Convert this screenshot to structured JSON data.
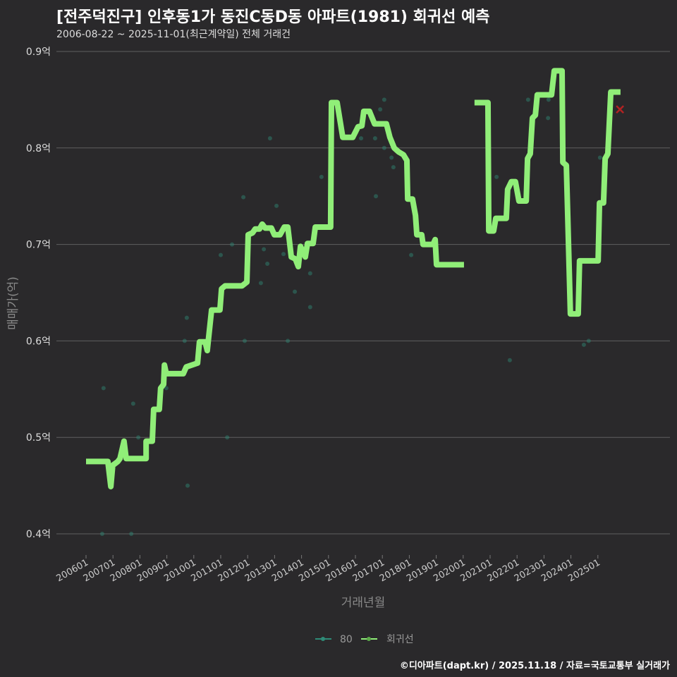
{
  "chart_data": {
    "type": "line",
    "title": "[전주덕진구] 인후동1가 동진C동D동 아파트(1981) 회귀선 예측",
    "subtitle": "2006-08-22 ~ 2025-11-01(최근계약일) 전체 거래건",
    "xlabel": "거래년월",
    "ylabel": "매매가(억)",
    "xlim": [
      2006,
      2026
    ],
    "ylim": [
      0.4,
      0.9
    ],
    "x_tick_labels": [
      "200601",
      "200701",
      "200801",
      "200901",
      "201001",
      "201101",
      "201201",
      "201301",
      "201401",
      "201501",
      "201601",
      "201701",
      "201801",
      "201901",
      "202001",
      "202101",
      "202201",
      "202301",
      "202401",
      "202501"
    ],
    "y_ticks": [
      0.4,
      0.5,
      0.6,
      0.7,
      0.8,
      0.9
    ],
    "y_tick_labels": [
      "0.4억",
      "0.5억",
      "0.6억",
      "0.7억",
      "0.8억",
      "0.9억"
    ],
    "legend": {
      "position": "bottom",
      "entries": [
        "80",
        "회귀선"
      ]
    },
    "colors": {
      "scatter": "#2e8b77",
      "line": "#90ee78",
      "prediction": "#b22222"
    },
    "series": [
      {
        "name": "80",
        "type": "scatter",
        "points": [
          [
            2006.65,
            0.551
          ],
          [
            2006.6,
            0.4
          ],
          [
            2007.68,
            0.4
          ],
          [
            2007.75,
            0.535
          ],
          [
            2007.94,
            0.5
          ],
          [
            2008.98,
            0.551
          ],
          [
            2009.66,
            0.6
          ],
          [
            2009.74,
            0.624
          ],
          [
            2009.77,
            0.45
          ],
          [
            2011.24,
            0.5
          ],
          [
            2011.0,
            0.689
          ],
          [
            2011.42,
            0.7
          ],
          [
            2011.84,
            0.749
          ],
          [
            2011.89,
            0.6
          ],
          [
            2012.49,
            0.66
          ],
          [
            2012.6,
            0.695
          ],
          [
            2012.73,
            0.68
          ],
          [
            2012.83,
            0.81
          ],
          [
            2013.07,
            0.74
          ],
          [
            2013.33,
            0.69
          ],
          [
            2013.49,
            0.6
          ],
          [
            2013.75,
            0.651
          ],
          [
            2014.32,
            0.67
          ],
          [
            2014.32,
            0.635
          ],
          [
            2014.74,
            0.77
          ],
          [
            2016.21,
            0.81
          ],
          [
            2016.73,
            0.81
          ],
          [
            2016.76,
            0.75
          ],
          [
            2016.92,
            0.84
          ],
          [
            2017.07,
            0.85
          ],
          [
            2017.07,
            0.8
          ],
          [
            2017.34,
            0.79
          ],
          [
            2017.41,
            0.78
          ],
          [
            2018.07,
            0.689
          ],
          [
            2021.24,
            0.77
          ],
          [
            2021.73,
            0.58
          ],
          [
            2022.41,
            0.85
          ],
          [
            2023.15,
            0.831
          ],
          [
            2023.17,
            0.85
          ],
          [
            2024.48,
            0.596
          ],
          [
            2024.66,
            0.6
          ],
          [
            2025.08,
            0.79
          ]
        ]
      },
      {
        "name": "회귀선",
        "type": "line",
        "segments": [
          [
            [
              2006.0,
              0.475
            ],
            [
              2006.81,
              0.475
            ],
            [
              2006.92,
              0.449
            ],
            [
              2006.99,
              0.471
            ],
            [
              2007.18,
              0.475
            ],
            [
              2007.26,
              0.478
            ],
            [
              2007.41,
              0.496
            ],
            [
              2007.49,
              0.478
            ],
            [
              2008.23,
              0.478
            ],
            [
              2008.23,
              0.496
            ],
            [
              2008.46,
              0.496
            ],
            [
              2008.51,
              0.529
            ],
            [
              2008.72,
              0.529
            ],
            [
              2008.77,
              0.551
            ],
            [
              2008.88,
              0.555
            ],
            [
              2008.91,
              0.575
            ],
            [
              2008.98,
              0.566
            ],
            [
              2009.61,
              0.566
            ],
            [
              2009.72,
              0.573
            ],
            [
              2010.14,
              0.577
            ],
            [
              2010.21,
              0.599
            ],
            [
              2010.42,
              0.599
            ],
            [
              2010.5,
              0.59
            ],
            [
              2010.66,
              0.632
            ],
            [
              2010.97,
              0.632
            ],
            [
              2011.03,
              0.654
            ],
            [
              2011.16,
              0.657
            ],
            [
              2011.79,
              0.657
            ],
            [
              2011.97,
              0.661
            ],
            [
              2012.02,
              0.71
            ],
            [
              2012.18,
              0.712
            ],
            [
              2012.28,
              0.716
            ],
            [
              2012.44,
              0.716
            ],
            [
              2012.54,
              0.721
            ],
            [
              2012.65,
              0.717
            ],
            [
              2012.88,
              0.717
            ],
            [
              2012.99,
              0.71
            ],
            [
              2013.2,
              0.71
            ],
            [
              2013.36,
              0.718
            ],
            [
              2013.49,
              0.718
            ],
            [
              2013.62,
              0.687
            ],
            [
              2013.77,
              0.685
            ],
            [
              2013.88,
              0.677
            ],
            [
              2013.96,
              0.698
            ],
            [
              2014.14,
              0.687
            ],
            [
              2014.22,
              0.701
            ],
            [
              2014.43,
              0.701
            ],
            [
              2014.51,
              0.718
            ],
            [
              2015.08,
              0.718
            ],
            [
              2015.11,
              0.847
            ],
            [
              2015.32,
              0.847
            ],
            [
              2015.53,
              0.811
            ],
            [
              2015.9,
              0.811
            ],
            [
              2016.1,
              0.822
            ],
            [
              2016.24,
              0.823
            ],
            [
              2016.31,
              0.838
            ],
            [
              2016.52,
              0.838
            ],
            [
              2016.71,
              0.825
            ],
            [
              2017.15,
              0.825
            ],
            [
              2017.28,
              0.811
            ],
            [
              2017.44,
              0.8
            ],
            [
              2017.6,
              0.796
            ],
            [
              2017.78,
              0.793
            ],
            [
              2017.91,
              0.787
            ],
            [
              2017.94,
              0.747
            ],
            [
              2018.12,
              0.747
            ],
            [
              2018.23,
              0.73
            ],
            [
              2018.28,
              0.71
            ],
            [
              2018.46,
              0.71
            ],
            [
              2018.51,
              0.7
            ],
            [
              2018.88,
              0.7
            ],
            [
              2018.96,
              0.705
            ],
            [
              2019.01,
              0.679
            ],
            [
              2020.03,
              0.679
            ]
          ],
          [
            [
              2020.42,
              0.847
            ],
            [
              2020.92,
              0.847
            ],
            [
              2020.95,
              0.714
            ],
            [
              2021.13,
              0.714
            ],
            [
              2021.21,
              0.727
            ],
            [
              2021.6,
              0.727
            ],
            [
              2021.65,
              0.757
            ],
            [
              2021.79,
              0.765
            ],
            [
              2021.94,
              0.765
            ],
            [
              2022.07,
              0.745
            ],
            [
              2022.34,
              0.745
            ],
            [
              2022.39,
              0.789
            ],
            [
              2022.49,
              0.794
            ],
            [
              2022.57,
              0.831
            ],
            [
              2022.68,
              0.834
            ],
            [
              2022.75,
              0.855
            ],
            [
              2023.28,
              0.855
            ],
            [
              2023.38,
              0.88
            ],
            [
              2023.67,
              0.88
            ],
            [
              2023.7,
              0.785
            ],
            [
              2023.83,
              0.782
            ],
            [
              2023.98,
              0.628
            ],
            [
              2024.27,
              0.628
            ],
            [
              2024.32,
              0.683
            ],
            [
              2025.01,
              0.683
            ],
            [
              2025.06,
              0.743
            ],
            [
              2025.21,
              0.743
            ],
            [
              2025.27,
              0.789
            ],
            [
              2025.37,
              0.794
            ],
            [
              2025.48,
              0.858
            ],
            [
              2025.84,
              0.858
            ]
          ]
        ]
      },
      {
        "name": "prediction",
        "type": "marker",
        "points": [
          [
            2025.82,
            0.84
          ]
        ]
      }
    ]
  },
  "footer": "©디아파트(dapt.kr) / 2025.11.18 / 자료=국토교통부 실거래가"
}
